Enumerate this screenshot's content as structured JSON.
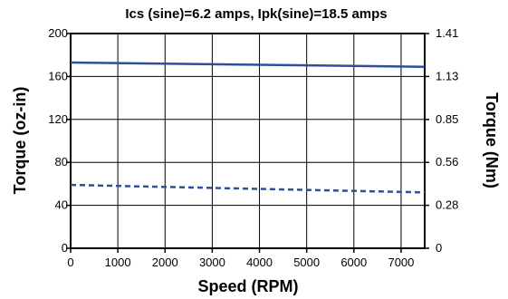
{
  "chart_data": {
    "type": "line",
    "title": "Ics (sine)=6.2 amps, Ipk(sine)=18.5 amps",
    "xlabel": "Speed (RPM)",
    "ylabel": "Torque (oz-in)",
    "y2label": "Torque (Nm)",
    "xlim": [
      0,
      7500
    ],
    "ylim": [
      0,
      200
    ],
    "x_ticks": [
      0,
      1000,
      2000,
      3000,
      4000,
      5000,
      6000,
      7000
    ],
    "x_tick_labels": [
      "0",
      "1000",
      "2000",
      "3000",
      "4000",
      "5000",
      "6000",
      "7000"
    ],
    "y_ticks": [
      0,
      40,
      80,
      120,
      160,
      200
    ],
    "y_tick_labels": [
      "0",
      "40",
      "80",
      "120",
      "160",
      "200"
    ],
    "y2_ticks": [
      0,
      40,
      80,
      120,
      160,
      200
    ],
    "y2_tick_labels": [
      "0",
      "0.28",
      "0.56",
      "0.85",
      "1.13",
      "1.41"
    ],
    "grid": true,
    "series": [
      {
        "style": "solid",
        "color": "#2e4f9a",
        "x": [
          0,
          7500
        ],
        "y": [
          173,
          169
        ]
      },
      {
        "style": "dashed",
        "color": "#2e4f9a",
        "x": [
          0,
          7500
        ],
        "y": [
          59,
          52
        ]
      }
    ]
  }
}
